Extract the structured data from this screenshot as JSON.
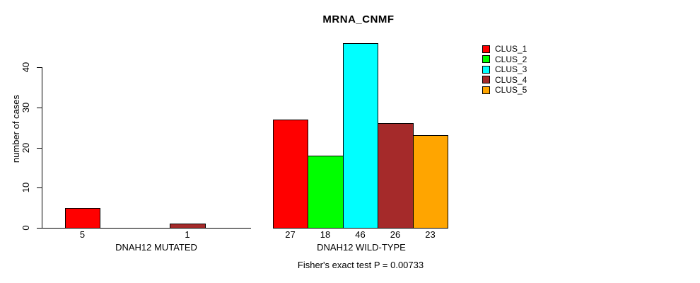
{
  "title": "MRNA_CNMF",
  "chart_data": {
    "type": "bar",
    "title": "MRNA_CNMF",
    "xlabel": "",
    "ylabel": "number of cases",
    "ylim": [
      0,
      46
    ],
    "yticks": [
      0,
      10,
      20,
      30,
      40
    ],
    "grid": false,
    "legend_position": "top-right",
    "groups": [
      "DNAH12 MUTATED",
      "DNAH12 WILD-TYPE"
    ],
    "series": [
      {
        "name": "CLUS_1",
        "color": "#FF0000",
        "values": [
          5,
          27
        ]
      },
      {
        "name": "CLUS_2",
        "color": "#00FF00",
        "values": [
          0,
          18
        ]
      },
      {
        "name": "CLUS_3",
        "color": "#00FFFF",
        "values": [
          0,
          46
        ]
      },
      {
        "name": "CLUS_4",
        "color": "#A52A2A",
        "values": [
          1,
          26
        ]
      },
      {
        "name": "CLUS_5",
        "color": "#FFA500",
        "values": [
          0,
          23
        ]
      }
    ],
    "bar_value_labels": {
      "DNAH12 MUTATED": [
        5,
        null,
        null,
        1,
        null
      ],
      "DNAH12 WILD-TYPE": [
        27,
        18,
        46,
        26,
        23
      ]
    },
    "annotation": "Fisher's exact test P = 0.00733"
  }
}
